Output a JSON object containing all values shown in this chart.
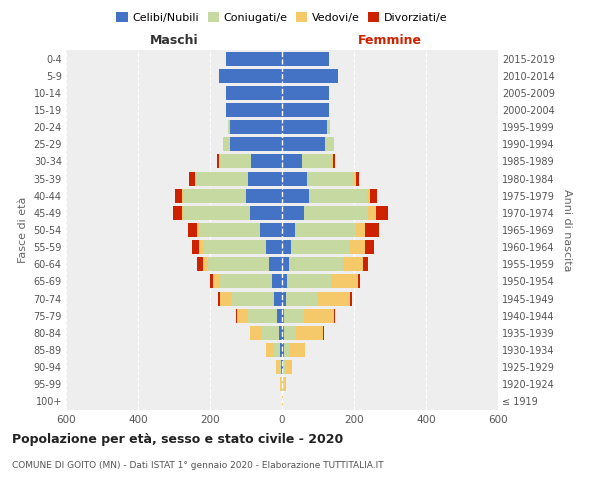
{
  "age_groups": [
    "100+",
    "95-99",
    "90-94",
    "85-89",
    "80-84",
    "75-79",
    "70-74",
    "65-69",
    "60-64",
    "55-59",
    "50-54",
    "45-49",
    "40-44",
    "35-39",
    "30-34",
    "25-29",
    "20-24",
    "15-19",
    "10-14",
    "5-9",
    "0-4"
  ],
  "birth_years": [
    "≤ 1919",
    "1920-1924",
    "1925-1929",
    "1930-1934",
    "1935-1939",
    "1940-1944",
    "1945-1949",
    "1950-1954",
    "1955-1959",
    "1960-1964",
    "1965-1969",
    "1970-1974",
    "1975-1979",
    "1980-1984",
    "1985-1989",
    "1990-1994",
    "1995-1999",
    "2000-2004",
    "2005-2009",
    "2010-2014",
    "2015-2019"
  ],
  "maschi": {
    "celibi": [
      0,
      1,
      2,
      5,
      8,
      15,
      22,
      28,
      35,
      45,
      60,
      90,
      100,
      95,
      85,
      145,
      145,
      155,
      155,
      175,
      155
    ],
    "coniugati": [
      0,
      2,
      5,
      20,
      50,
      80,
      120,
      145,
      170,
      175,
      170,
      185,
      175,
      145,
      90,
      20,
      5,
      0,
      0,
      0,
      0
    ],
    "vedovi": [
      0,
      3,
      10,
      20,
      30,
      30,
      30,
      20,
      15,
      10,
      5,
      3,
      3,
      2,
      1,
      0,
      0,
      0,
      0,
      0,
      0
    ],
    "divorziati": [
      0,
      0,
      0,
      0,
      2,
      3,
      5,
      8,
      15,
      20,
      25,
      25,
      20,
      15,
      5,
      0,
      0,
      0,
      0,
      0,
      0
    ]
  },
  "femmine": {
    "nubili": [
      0,
      1,
      2,
      5,
      5,
      5,
      10,
      15,
      20,
      25,
      35,
      60,
      75,
      70,
      55,
      120,
      125,
      130,
      130,
      155,
      130
    ],
    "coniugate": [
      0,
      2,
      5,
      15,
      35,
      55,
      90,
      120,
      150,
      165,
      170,
      180,
      160,
      130,
      85,
      25,
      8,
      0,
      0,
      0,
      0
    ],
    "vedove": [
      2,
      8,
      20,
      45,
      75,
      85,
      90,
      75,
      55,
      40,
      25,
      20,
      10,
      5,
      2,
      0,
      0,
      0,
      0,
      0,
      0
    ],
    "divorziate": [
      0,
      0,
      0,
      0,
      2,
      3,
      5,
      8,
      15,
      25,
      40,
      35,
      20,
      10,
      5,
      0,
      0,
      0,
      0,
      0,
      0
    ]
  },
  "colors": {
    "celibi_nubili": "#4472c4",
    "coniugati": "#c5d9a0",
    "vedovi": "#f5c96a",
    "divorziati": "#cc2200"
  },
  "xlim": 600,
  "title": "Popolazione per età, sesso e stato civile - 2020",
  "subtitle": "COMUNE DI GOITO (MN) - Dati ISTAT 1° gennaio 2020 - Elaborazione TUTTITALIA.IT",
  "legend_labels": [
    "Celibi/Nubili",
    "Coniugati/e",
    "Vedovi/e",
    "Divorziati/e"
  ],
  "ylabel_left": "Fasce di età",
  "ylabel_right": "Anni di nascita",
  "xlabel_maschi": "Maschi",
  "xlabel_femmine": "Femmine"
}
